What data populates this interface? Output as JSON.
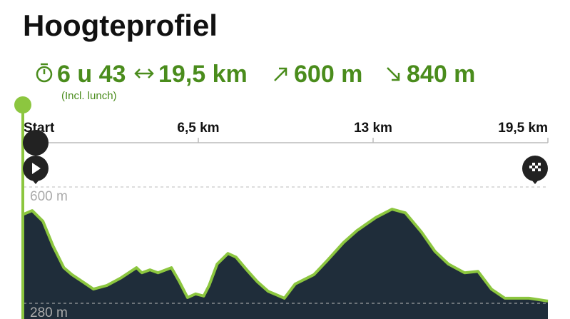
{
  "header": {
    "title": "Hoogteprofiel",
    "duration": "6 u 43",
    "duration_note": "(Incl. lunch)",
    "distance": "19,5 km",
    "ascent": "600 m",
    "descent": "840 m"
  },
  "chart_data": {
    "type": "area",
    "x": [
      0,
      0.32,
      0.72,
      1.1,
      1.5,
      1.8,
      2.2,
      2.6,
      3.1,
      3.6,
      4.2,
      4.4,
      4.7,
      5.0,
      5.5,
      5.8,
      6.1,
      6.4,
      6.7,
      6.9,
      7.2,
      7.6,
      7.9,
      8.3,
      8.7,
      9.1,
      9.7,
      10.1,
      10.8,
      11.3,
      11.9,
      12.4,
      13.1,
      13.7,
      14.2,
      14.8,
      15.3,
      15.8,
      16.4,
      16.9,
      17.4,
      17.9,
      18.8,
      19.5
    ],
    "values": [
      525,
      535,
      506,
      437,
      378,
      359,
      339,
      319,
      329,
      349,
      378,
      364,
      372,
      364,
      378,
      339,
      296,
      306,
      300,
      329,
      388,
      417,
      407,
      372,
      339,
      313,
      294,
      333,
      359,
      398,
      447,
      480,
      516,
      539,
      529,
      476,
      423,
      388,
      364,
      368,
      319,
      294,
      294,
      286
    ],
    "color": "#8cc63f",
    "fill": "#1f2d3a",
    "xlim": [
      0,
      19.5
    ],
    "xticks": [
      {
        "value": 0,
        "label": "Start"
      },
      {
        "value": 6.5,
        "label": "6,5 km"
      },
      {
        "value": 13,
        "label": "13 km"
      },
      {
        "value": 19.5,
        "label": "19,5 km"
      }
    ],
    "ylim": [
      280,
      600
    ],
    "yticks": [
      {
        "value": 600,
        "label": "600 m"
      },
      {
        "value": 280,
        "label": "280 m"
      }
    ]
  }
}
